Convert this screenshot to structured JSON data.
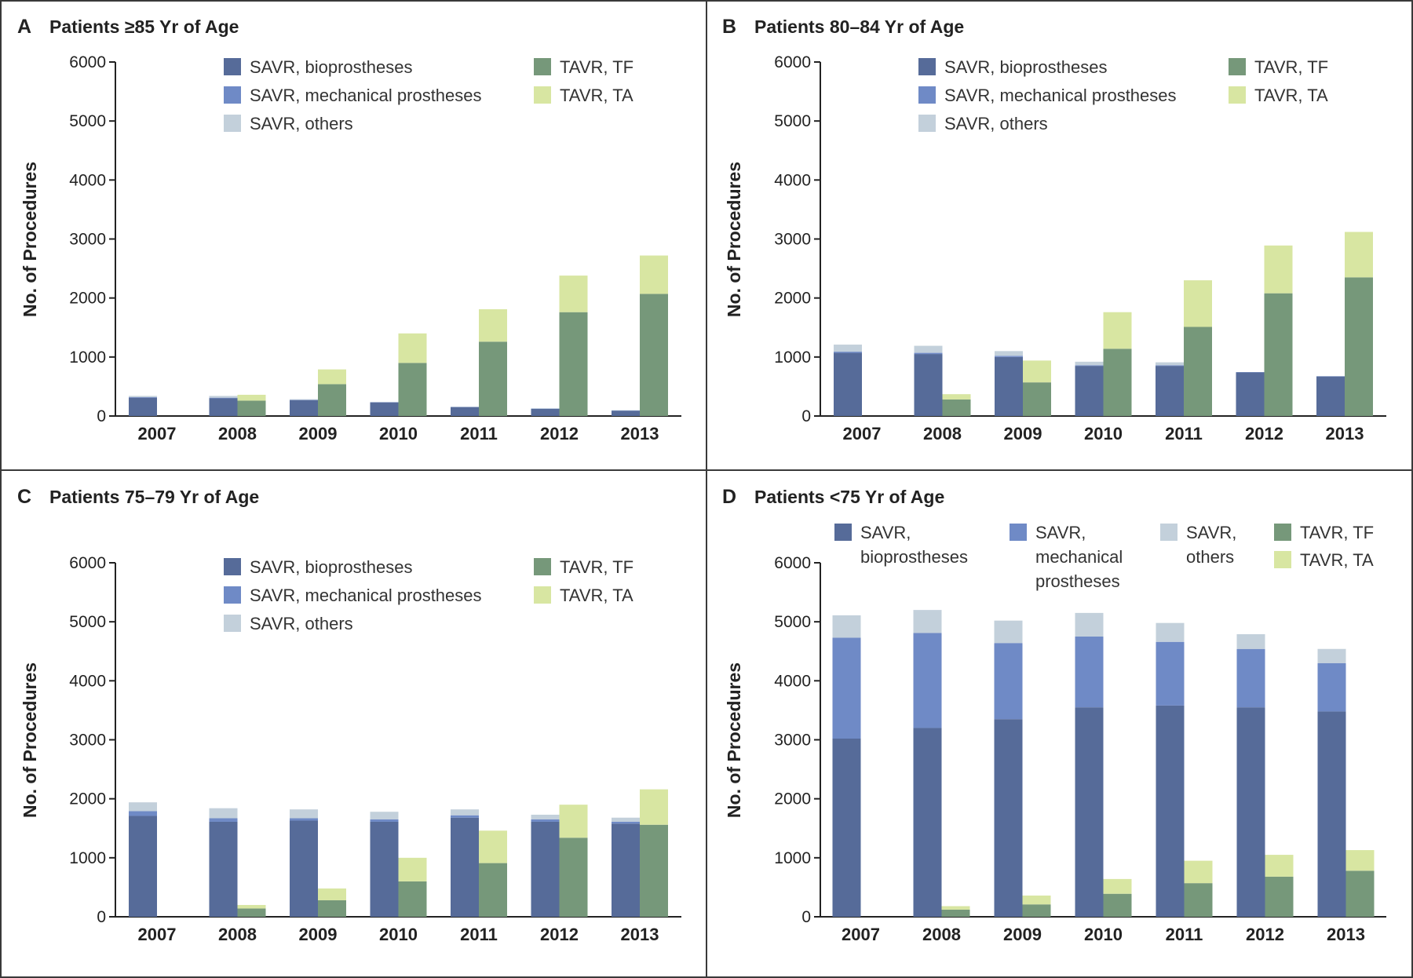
{
  "colors": {
    "SAVR, bioprostheses": "#566b99",
    "SAVR, mechanical prostheses": "#6f8ac6",
    "SAVR, others": "#c3d0db",
    "TAVR, TF": "#76987a",
    "TAVR, TA": "#d8e6a2"
  },
  "chart_data": [
    {
      "panel": "A",
      "title": "Patients ≥85 Yr of Age",
      "type": "bar",
      "stacked": true,
      "ylabel": "No. of Procedures",
      "ylim": [
        0,
        6000
      ],
      "yticks": [
        0,
        1000,
        2000,
        3000,
        4000,
        5000,
        6000
      ],
      "legend_position": "top",
      "legend_labels": {
        "SAVR, bioprostheses": [
          "SAVR, bioprostheses"
        ],
        "SAVR, mechanical prostheses": [
          "SAVR, mechanical prostheses"
        ],
        "SAVR, others": [
          "SAVR, others"
        ],
        "TAVR, TF": [
          "TAVR, TF"
        ],
        "TAVR, TA": [
          "TAVR, TA"
        ]
      },
      "categories": [
        "2007",
        "2008",
        "2009",
        "2010",
        "2011",
        "2012",
        "2013"
      ],
      "groups": [
        {
          "stack": "SAVR",
          "series": [
            {
              "name": "SAVR, bioprostheses",
              "values": [
                310,
                300,
                270,
                230,
                150,
                120,
                90
              ]
            },
            {
              "name": "SAVR, mechanical prostheses",
              "values": [
                10,
                10,
                5,
                5,
                5,
                5,
                5
              ]
            },
            {
              "name": "SAVR, others",
              "values": [
                20,
                30,
                10,
                5,
                5,
                5,
                5
              ]
            }
          ]
        },
        {
          "stack": "TAVR",
          "series": [
            {
              "name": "TAVR, TF",
              "values": [
                0,
                260,
                540,
                900,
                1260,
                1760,
                2070
              ]
            },
            {
              "name": "TAVR, TA",
              "values": [
                0,
                100,
                250,
                500,
                550,
                620,
                650
              ]
            }
          ]
        }
      ]
    },
    {
      "panel": "B",
      "title": "Patients 80–84 Yr of Age",
      "type": "bar",
      "stacked": true,
      "ylabel": "No. of Procedures",
      "ylim": [
        0,
        6000
      ],
      "yticks": [
        0,
        1000,
        2000,
        3000,
        4000,
        5000,
        6000
      ],
      "legend_position": "top",
      "legend_labels": {
        "SAVR, bioprostheses": [
          "SAVR, bioprostheses"
        ],
        "SAVR, mechanical prostheses": [
          "SAVR, mechanical prostheses"
        ],
        "SAVR, others": [
          "SAVR, others"
        ],
        "TAVR, TF": [
          "TAVR, TF"
        ],
        "TAVR, TA": [
          "TAVR, TA"
        ]
      },
      "categories": [
        "2007",
        "2008",
        "2009",
        "2010",
        "2011",
        "2012",
        "2013"
      ],
      "groups": [
        {
          "stack": "SAVR",
          "series": [
            {
              "name": "SAVR, bioprostheses",
              "values": [
                1070,
                1050,
                1000,
                850,
                850,
                740,
                670
              ]
            },
            {
              "name": "SAVR, mechanical prostheses",
              "values": [
                20,
                20,
                20,
                10,
                10,
                5,
                5
              ]
            },
            {
              "name": "SAVR, others",
              "values": [
                120,
                120,
                80,
                60,
                50,
                0,
                0
              ]
            }
          ]
        },
        {
          "stack": "TAVR",
          "series": [
            {
              "name": "TAVR, TF",
              "values": [
                0,
                280,
                570,
                1140,
                1510,
                2080,
                2350
              ]
            },
            {
              "name": "TAVR, TA",
              "values": [
                0,
                90,
                370,
                620,
                790,
                810,
                770
              ]
            }
          ]
        }
      ]
    },
    {
      "panel": "C",
      "title": "Patients 75–79 Yr of Age",
      "type": "bar",
      "stacked": true,
      "ylabel": "No. of Procedures",
      "ylim": [
        0,
        6000
      ],
      "yticks": [
        0,
        1000,
        2000,
        3000,
        4000,
        5000,
        6000
      ],
      "legend_position": "top",
      "legend_labels": {
        "SAVR, bioprostheses": [
          "SAVR, bioprostheses"
        ],
        "SAVR, mechanical prostheses": [
          "SAVR, mechanical prostheses"
        ],
        "SAVR, others": [
          "SAVR, others"
        ],
        "TAVR, TF": [
          "TAVR, TF"
        ],
        "TAVR, TA": [
          "TAVR, TA"
        ]
      },
      "categories": [
        "2007",
        "2008",
        "2009",
        "2010",
        "2011",
        "2012",
        "2013"
      ],
      "groups": [
        {
          "stack": "SAVR",
          "series": [
            {
              "name": "SAVR, bioprostheses",
              "values": [
                1710,
                1610,
                1630,
                1610,
                1680,
                1610,
                1580
              ]
            },
            {
              "name": "SAVR, mechanical prostheses",
              "values": [
                80,
                60,
                40,
                40,
                40,
                40,
                30
              ]
            },
            {
              "name": "SAVR, others",
              "values": [
                150,
                170,
                150,
                130,
                100,
                80,
                70
              ]
            }
          ]
        },
        {
          "stack": "TAVR",
          "series": [
            {
              "name": "TAVR, TF",
              "values": [
                0,
                140,
                280,
                600,
                910,
                1340,
                1560
              ]
            },
            {
              "name": "TAVR, TA",
              "values": [
                0,
                60,
                200,
                400,
                550,
                560,
                600
              ]
            }
          ]
        }
      ]
    },
    {
      "panel": "D",
      "title": "Patients <75 Yr of Age",
      "type": "bar",
      "stacked": true,
      "ylabel": "No. of Procedures",
      "ylim": [
        0,
        6000
      ],
      "yticks": [
        0,
        1000,
        2000,
        3000,
        4000,
        5000,
        6000
      ],
      "legend_position": "top",
      "legend_labels": {
        "SAVR, bioprostheses": [
          "SAVR,",
          "bioprostheses"
        ],
        "SAVR, mechanical prostheses": [
          "SAVR,",
          "mechanical",
          "prostheses"
        ],
        "SAVR, others": [
          "SAVR,",
          "others"
        ],
        "TAVR, TF": [
          "TAVR, TF"
        ],
        "TAVR, TA": [
          "TAVR, TA"
        ]
      },
      "categories": [
        "2007",
        "2008",
        "2009",
        "2010",
        "2011",
        "2012",
        "2013"
      ],
      "groups": [
        {
          "stack": "SAVR",
          "series": [
            {
              "name": "SAVR, bioprostheses",
              "values": [
                3020,
                3200,
                3350,
                3550,
                3580,
                3550,
                3480
              ]
            },
            {
              "name": "SAVR, mechanical prostheses",
              "values": [
                1710,
                1610,
                1290,
                1200,
                1080,
                990,
                820
              ]
            },
            {
              "name": "SAVR, others",
              "values": [
                380,
                390,
                380,
                400,
                320,
                250,
                240
              ]
            }
          ]
        },
        {
          "stack": "TAVR",
          "series": [
            {
              "name": "TAVR, TF",
              "values": [
                0,
                120,
                210,
                390,
                570,
                680,
                780
              ]
            },
            {
              "name": "TAVR, TA",
              "values": [
                0,
                60,
                150,
                250,
                380,
                370,
                350
              ]
            }
          ]
        }
      ]
    }
  ]
}
